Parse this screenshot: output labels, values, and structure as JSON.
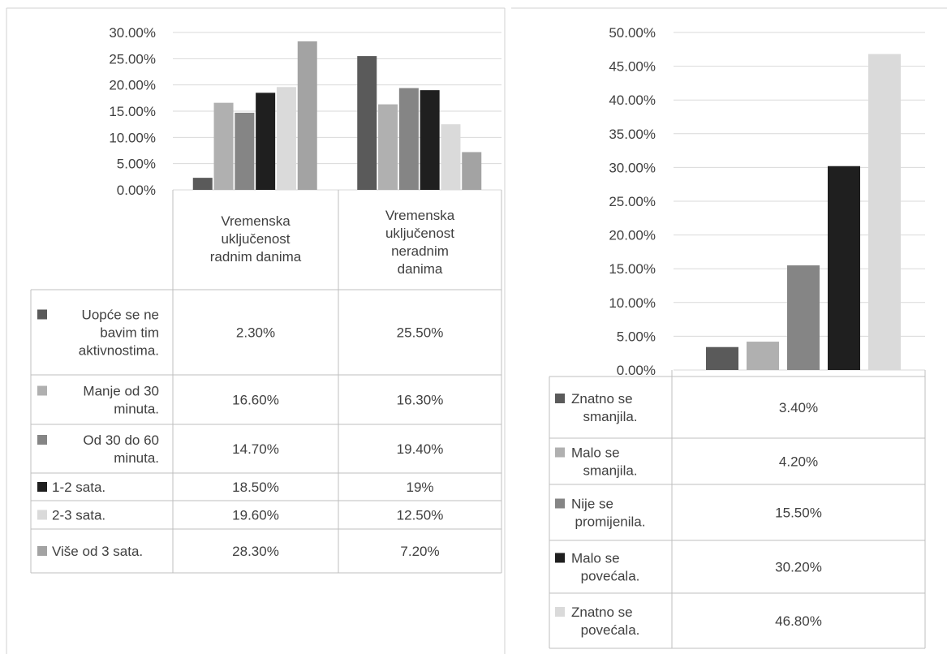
{
  "chart_data": [
    {
      "type": "bar",
      "categories": [
        "Vremenska uključenost radnim danima",
        "Vremenska uključenost neradnim danima"
      ],
      "category_lines": [
        [
          "Vremenska",
          "uključenost",
          "radnim danima"
        ],
        [
          "Vremenska",
          "uključenost",
          "neradnim",
          "danima"
        ]
      ],
      "ylim": [
        0,
        30
      ],
      "y_ticks": [
        "0.00%",
        "5.00%",
        "10.00%",
        "15.00%",
        "20.00%",
        "25.00%",
        "30.00%"
      ],
      "series": [
        {
          "name": "Uopće se ne bavim tim aktivnostima.",
          "label_lines": [
            "Uopće se ne",
            "bavim tim",
            "aktivnostima."
          ],
          "values": [
            2.3,
            25.5
          ],
          "labels": [
            "2.30%",
            "25.50%"
          ],
          "color": "#5a5a5a"
        },
        {
          "name": "Manje od 30 minuta.",
          "label_lines": [
            "Manje od 30",
            "minuta."
          ],
          "values": [
            16.6,
            16.3
          ],
          "labels": [
            "16.60%",
            "16.30%"
          ],
          "color": "#b0b0b0"
        },
        {
          "name": "Od 30 do 60 minuta.",
          "label_lines": [
            "Od 30 do 60",
            "minuta."
          ],
          "values": [
            14.7,
            19.4
          ],
          "labels": [
            "14.70%",
            "19.40%"
          ],
          "color": "#858585"
        },
        {
          "name": "1-2 sata.",
          "label_lines": [
            "1-2 sata."
          ],
          "values": [
            18.5,
            19
          ],
          "labels": [
            "18.50%",
            "19%"
          ],
          "color": "#1f1f1f"
        },
        {
          "name": "2-3 sata.",
          "label_lines": [
            "2-3 sata."
          ],
          "values": [
            19.6,
            12.5
          ],
          "labels": [
            "19.60%",
            "12.50%"
          ],
          "color": "#dadada"
        },
        {
          "name": "Više od 3 sata.",
          "label_lines": [
            "Više od 3 sata."
          ],
          "values": [
            28.3,
            7.2
          ],
          "labels": [
            "28.30%",
            "7.20%"
          ],
          "color": "#a3a3a3"
        }
      ],
      "legend": "data table below chart",
      "grid": true
    },
    {
      "type": "bar",
      "categories": [
        ""
      ],
      "ylim": [
        0,
        50
      ],
      "y_ticks": [
        "0.00%",
        "5.00%",
        "10.00%",
        "15.00%",
        "20.00%",
        "25.00%",
        "30.00%",
        "35.00%",
        "40.00%",
        "45.00%",
        "50.00%"
      ],
      "series": [
        {
          "name": "Znatno se smanjila.",
          "label_lines": [
            "Znatno se",
            "smanjila."
          ],
          "values": [
            3.4
          ],
          "labels": [
            "3.40%"
          ],
          "color": "#5a5a5a"
        },
        {
          "name": "Malo se smanjila.",
          "label_lines": [
            "Malo se",
            "smanjila."
          ],
          "values": [
            4.2
          ],
          "labels": [
            "4.20%"
          ],
          "color": "#b0b0b0"
        },
        {
          "name": "Nije se promijenila.",
          "label_lines": [
            "Nije se",
            "promijenila."
          ],
          "values": [
            15.5
          ],
          "labels": [
            "15.50%"
          ],
          "color": "#858585"
        },
        {
          "name": "Malo se povećala.",
          "label_lines": [
            "Malo se",
            "povećala."
          ],
          "values": [
            30.2
          ],
          "labels": [
            "30.20%"
          ],
          "color": "#1f1f1f"
        },
        {
          "name": "Znatno se povećala.",
          "label_lines": [
            "Znatno se",
            "povećala."
          ],
          "values": [
            46.8
          ],
          "labels": [
            "46.80%"
          ],
          "color": "#dadada"
        }
      ],
      "legend": "data table below chart",
      "grid": true
    }
  ],
  "colors": {
    "grid": "#d9d9d9",
    "table_border": "#bfbfbf",
    "frame": "#d0d0d0",
    "text": "#404040"
  }
}
